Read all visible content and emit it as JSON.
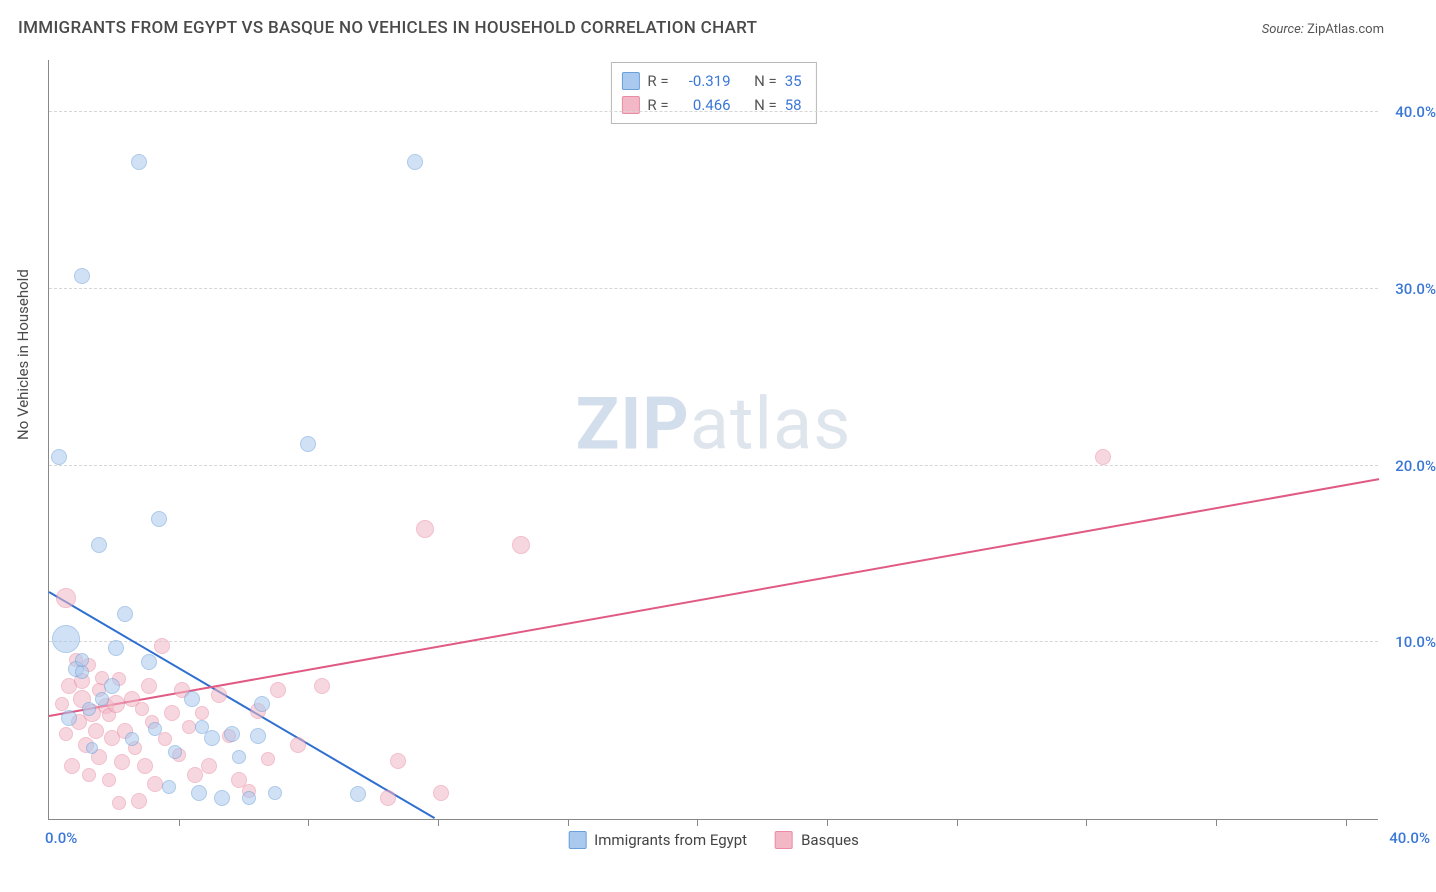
{
  "title": "IMMIGRANTS FROM EGYPT VS BASQUE NO VEHICLES IN HOUSEHOLD CORRELATION CHART",
  "source_label": "Source:",
  "source_value": "ZipAtlas.com",
  "ylabel": "No Vehicles in Household",
  "watermark_bold": "ZIP",
  "watermark_rest": "atlas",
  "chart": {
    "type": "scatter",
    "xlim": [
      0,
      40
    ],
    "ylim": [
      0,
      43
    ],
    "yticks": [
      10,
      20,
      30,
      40
    ],
    "ytick_labels": [
      "10.0%",
      "20.0%",
      "30.0%",
      "40.0%"
    ],
    "xtick_positions": [
      3.9,
      7.8,
      11.7,
      15.6,
      19.5,
      23.4,
      27.3,
      31.2,
      35.1,
      39.0
    ],
    "xaxis_origin_label": "0.0%",
    "xaxis_end_label": "40.0%",
    "background_color": "#ffffff",
    "grid_color": "#d6d6d6",
    "axis_color": "#888888",
    "axis_label_color": "#3a77d6",
    "series": [
      {
        "name": "Immigrants from Egypt",
        "fill": "#aac9ee",
        "stroke": "#6a9fd8",
        "fill_opacity": 0.55,
        "line_color": "#2f6fd0",
        "R_label": "R =",
        "R_value": "-0.319",
        "N_label": "N =",
        "N_value": "35",
        "regression": {
          "x1": 0,
          "y1": 12.8,
          "x2": 11.6,
          "y2": 0
        },
        "points": [
          {
            "x": 0.3,
            "y": 20.5,
            "r": 8
          },
          {
            "x": 0.5,
            "y": 10.2,
            "r": 14
          },
          {
            "x": 0.6,
            "y": 5.7,
            "r": 8
          },
          {
            "x": 0.8,
            "y": 8.5,
            "r": 8
          },
          {
            "x": 1.0,
            "y": 30.7,
            "r": 8
          },
          {
            "x": 1.0,
            "y": 8.3,
            "r": 7
          },
          {
            "x": 1.0,
            "y": 9.0,
            "r": 7
          },
          {
            "x": 1.2,
            "y": 6.2,
            "r": 7
          },
          {
            "x": 1.3,
            "y": 4.0,
            "r": 6
          },
          {
            "x": 1.5,
            "y": 15.5,
            "r": 8
          },
          {
            "x": 1.6,
            "y": 6.8,
            "r": 7
          },
          {
            "x": 1.9,
            "y": 7.5,
            "r": 8
          },
          {
            "x": 2.0,
            "y": 9.7,
            "r": 8
          },
          {
            "x": 2.3,
            "y": 11.6,
            "r": 8
          },
          {
            "x": 2.5,
            "y": 4.5,
            "r": 7
          },
          {
            "x": 2.7,
            "y": 37.2,
            "r": 8
          },
          {
            "x": 3.0,
            "y": 8.9,
            "r": 8
          },
          {
            "x": 3.2,
            "y": 5.1,
            "r": 7
          },
          {
            "x": 3.3,
            "y": 17.0,
            "r": 8
          },
          {
            "x": 3.6,
            "y": 1.8,
            "r": 7
          },
          {
            "x": 3.8,
            "y": 3.8,
            "r": 7
          },
          {
            "x": 4.3,
            "y": 6.8,
            "r": 8
          },
          {
            "x": 4.5,
            "y": 1.5,
            "r": 8
          },
          {
            "x": 4.6,
            "y": 5.2,
            "r": 7
          },
          {
            "x": 4.9,
            "y": 4.6,
            "r": 8
          },
          {
            "x": 5.2,
            "y": 1.2,
            "r": 8
          },
          {
            "x": 5.5,
            "y": 4.8,
            "r": 8
          },
          {
            "x": 5.7,
            "y": 3.5,
            "r": 7
          },
          {
            "x": 6.0,
            "y": 1.2,
            "r": 7
          },
          {
            "x": 6.3,
            "y": 4.7,
            "r": 8
          },
          {
            "x": 6.4,
            "y": 6.5,
            "r": 8
          },
          {
            "x": 6.8,
            "y": 1.5,
            "r": 7
          },
          {
            "x": 7.8,
            "y": 21.2,
            "r": 8
          },
          {
            "x": 9.3,
            "y": 1.4,
            "r": 8
          },
          {
            "x": 11.0,
            "y": 37.2,
            "r": 8
          }
        ]
      },
      {
        "name": "Basques",
        "fill": "#f2b8c6",
        "stroke": "#e98ba3",
        "fill_opacity": 0.55,
        "line_color": "#e05a84",
        "R_label": "R =",
        "R_value": "0.466",
        "N_label": "N =",
        "N_value": "58",
        "regression": {
          "x1": 0,
          "y1": 5.8,
          "x2": 40,
          "y2": 19.2
        },
        "points": [
          {
            "x": 0.4,
            "y": 6.5,
            "r": 7
          },
          {
            "x": 0.5,
            "y": 12.5,
            "r": 10
          },
          {
            "x": 0.5,
            "y": 4.8,
            "r": 7
          },
          {
            "x": 0.6,
            "y": 7.5,
            "r": 8
          },
          {
            "x": 0.7,
            "y": 3.0,
            "r": 8
          },
          {
            "x": 0.8,
            "y": 9.0,
            "r": 7
          },
          {
            "x": 0.9,
            "y": 5.5,
            "r": 8
          },
          {
            "x": 1.0,
            "y": 6.8,
            "r": 9
          },
          {
            "x": 1.0,
            "y": 7.8,
            "r": 8
          },
          {
            "x": 1.1,
            "y": 4.2,
            "r": 8
          },
          {
            "x": 1.2,
            "y": 8.7,
            "r": 7
          },
          {
            "x": 1.2,
            "y": 2.5,
            "r": 7
          },
          {
            "x": 1.3,
            "y": 6.0,
            "r": 9
          },
          {
            "x": 1.4,
            "y": 5.0,
            "r": 8
          },
          {
            "x": 1.5,
            "y": 7.3,
            "r": 7
          },
          {
            "x": 1.5,
            "y": 3.5,
            "r": 8
          },
          {
            "x": 1.6,
            "y": 8.0,
            "r": 7
          },
          {
            "x": 1.7,
            "y": 6.4,
            "r": 8
          },
          {
            "x": 1.8,
            "y": 5.9,
            "r": 7
          },
          {
            "x": 1.8,
            "y": 2.2,
            "r": 7
          },
          {
            "x": 1.9,
            "y": 4.6,
            "r": 8
          },
          {
            "x": 2.0,
            "y": 6.5,
            "r": 9
          },
          {
            "x": 2.1,
            "y": 0.9,
            "r": 7
          },
          {
            "x": 2.1,
            "y": 7.9,
            "r": 7
          },
          {
            "x": 2.2,
            "y": 3.2,
            "r": 8
          },
          {
            "x": 2.3,
            "y": 5.0,
            "r": 8
          },
          {
            "x": 2.5,
            "y": 6.8,
            "r": 8
          },
          {
            "x": 2.6,
            "y": 4.0,
            "r": 7
          },
          {
            "x": 2.7,
            "y": 1.0,
            "r": 8
          },
          {
            "x": 2.8,
            "y": 6.2,
            "r": 7
          },
          {
            "x": 2.9,
            "y": 3.0,
            "r": 8
          },
          {
            "x": 3.0,
            "y": 7.5,
            "r": 8
          },
          {
            "x": 3.1,
            "y": 5.5,
            "r": 7
          },
          {
            "x": 3.2,
            "y": 2.0,
            "r": 8
          },
          {
            "x": 3.4,
            "y": 9.8,
            "r": 8
          },
          {
            "x": 3.5,
            "y": 4.5,
            "r": 7
          },
          {
            "x": 3.7,
            "y": 6.0,
            "r": 8
          },
          {
            "x": 3.9,
            "y": 3.6,
            "r": 7
          },
          {
            "x": 4.0,
            "y": 7.3,
            "r": 8
          },
          {
            "x": 4.2,
            "y": 5.2,
            "r": 7
          },
          {
            "x": 4.4,
            "y": 2.5,
            "r": 8
          },
          {
            "x": 4.6,
            "y": 6.0,
            "r": 7
          },
          {
            "x": 4.8,
            "y": 3.0,
            "r": 8
          },
          {
            "x": 5.1,
            "y": 7.0,
            "r": 8
          },
          {
            "x": 5.4,
            "y": 4.7,
            "r": 7
          },
          {
            "x": 5.7,
            "y": 2.2,
            "r": 8
          },
          {
            "x": 6.0,
            "y": 1.6,
            "r": 7
          },
          {
            "x": 6.3,
            "y": 6.1,
            "r": 8
          },
          {
            "x": 6.6,
            "y": 3.4,
            "r": 7
          },
          {
            "x": 6.9,
            "y": 7.3,
            "r": 8
          },
          {
            "x": 7.5,
            "y": 4.2,
            "r": 8
          },
          {
            "x": 8.2,
            "y": 7.5,
            "r": 8
          },
          {
            "x": 10.2,
            "y": 1.2,
            "r": 8
          },
          {
            "x": 10.5,
            "y": 3.3,
            "r": 8
          },
          {
            "x": 11.3,
            "y": 16.4,
            "r": 9
          },
          {
            "x": 11.8,
            "y": 1.5,
            "r": 8
          },
          {
            "x": 14.2,
            "y": 15.5,
            "r": 9
          },
          {
            "x": 31.7,
            "y": 20.5,
            "r": 8
          }
        ]
      }
    ]
  }
}
